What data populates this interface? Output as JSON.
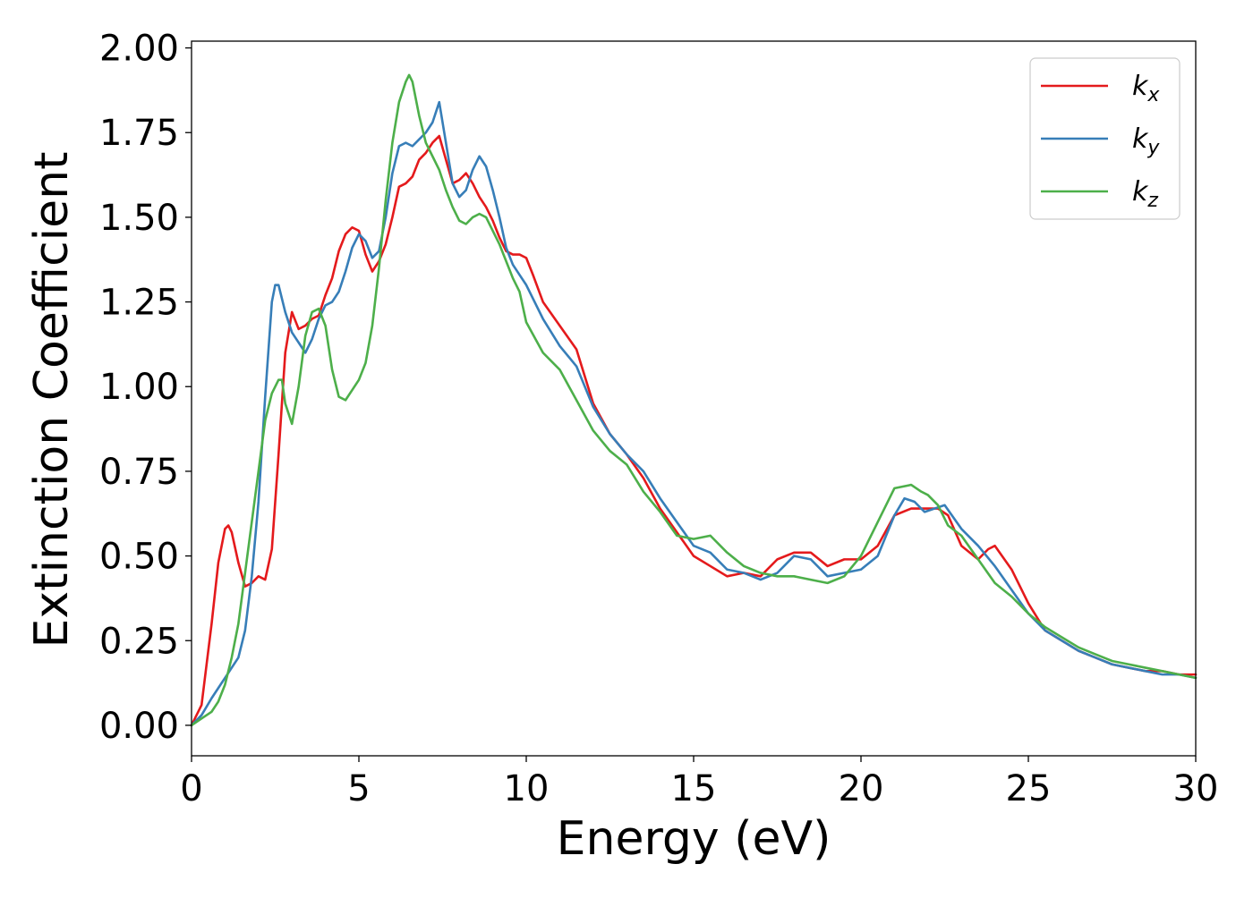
{
  "chart_data": {
    "type": "line",
    "xlabel": "Energy (eV)",
    "ylabel": "Extinction Coefficient",
    "xlim": [
      0,
      30
    ],
    "ylim": [
      -0.09,
      2.02
    ],
    "xticks": [
      0,
      5,
      10,
      15,
      20,
      25,
      30
    ],
    "xtick_labels": [
      "0",
      "5",
      "10",
      "15",
      "20",
      "25",
      "30"
    ],
    "yticks": [
      0.0,
      0.25,
      0.5,
      0.75,
      1.0,
      1.25,
      1.5,
      1.75,
      2.0
    ],
    "ytick_labels": [
      "0.00",
      "0.25",
      "0.50",
      "0.75",
      "1.00",
      "1.25",
      "1.50",
      "1.75",
      "2.00"
    ],
    "grid": false,
    "legend_position": "top-right",
    "series": [
      {
        "name": "kx",
        "name_base": "k",
        "name_sub": "x",
        "color": "#e41a1c",
        "x": [
          0,
          0.3,
          0.6,
          0.8,
          1.0,
          1.1,
          1.2,
          1.4,
          1.6,
          1.8,
          2.0,
          2.2,
          2.4,
          2.6,
          2.8,
          3.0,
          3.2,
          3.4,
          3.6,
          3.8,
          4.0,
          4.2,
          4.4,
          4.6,
          4.8,
          5.0,
          5.2,
          5.4,
          5.6,
          5.8,
          6.0,
          6.2,
          6.4,
          6.6,
          6.8,
          7.0,
          7.2,
          7.4,
          7.6,
          7.8,
          8.0,
          8.2,
          8.4,
          8.6,
          8.8,
          9.0,
          9.2,
          9.4,
          9.6,
          9.8,
          10.0,
          10.2,
          10.5,
          11.0,
          11.5,
          12.0,
          12.5,
          13.0,
          13.5,
          14.0,
          14.5,
          15.0,
          15.5,
          16.0,
          16.5,
          17.0,
          17.5,
          18.0,
          18.5,
          19.0,
          19.5,
          20.0,
          20.5,
          21.0,
          21.5,
          22.0,
          22.3,
          22.6,
          23.0,
          23.5,
          23.8,
          24.0,
          24.5,
          25.0,
          25.5,
          26.0,
          26.5,
          27.0,
          27.5,
          28.0,
          28.5,
          29.0,
          29.5,
          30.0
        ],
        "values": [
          0.0,
          0.06,
          0.3,
          0.48,
          0.58,
          0.59,
          0.57,
          0.48,
          0.41,
          0.42,
          0.44,
          0.43,
          0.52,
          0.8,
          1.1,
          1.22,
          1.17,
          1.18,
          1.2,
          1.21,
          1.27,
          1.32,
          1.4,
          1.45,
          1.47,
          1.46,
          1.39,
          1.34,
          1.37,
          1.42,
          1.5,
          1.59,
          1.6,
          1.62,
          1.67,
          1.69,
          1.72,
          1.74,
          1.67,
          1.6,
          1.61,
          1.63,
          1.6,
          1.56,
          1.53,
          1.49,
          1.44,
          1.4,
          1.39,
          1.39,
          1.38,
          1.33,
          1.25,
          1.18,
          1.11,
          0.95,
          0.86,
          0.8,
          0.73,
          0.64,
          0.57,
          0.5,
          0.47,
          0.44,
          0.45,
          0.44,
          0.49,
          0.51,
          0.51,
          0.47,
          0.49,
          0.49,
          0.53,
          0.62,
          0.64,
          0.64,
          0.64,
          0.62,
          0.53,
          0.49,
          0.52,
          0.53,
          0.46,
          0.36,
          0.28,
          0.25,
          0.22,
          0.2,
          0.18,
          0.17,
          0.16,
          0.16,
          0.15,
          0.15
        ]
      },
      {
        "name": "ky",
        "name_base": "k",
        "name_sub": "y",
        "color": "#377eb8",
        "x": [
          0,
          0.3,
          0.6,
          0.8,
          1.0,
          1.2,
          1.4,
          1.6,
          1.8,
          2.0,
          2.2,
          2.4,
          2.5,
          2.6,
          2.8,
          3.0,
          3.2,
          3.4,
          3.6,
          3.8,
          4.0,
          4.2,
          4.4,
          4.6,
          4.8,
          5.0,
          5.2,
          5.4,
          5.6,
          5.8,
          6.0,
          6.2,
          6.4,
          6.6,
          6.8,
          7.0,
          7.2,
          7.4,
          7.6,
          7.8,
          8.0,
          8.2,
          8.4,
          8.6,
          8.8,
          9.0,
          9.2,
          9.4,
          9.6,
          9.8,
          10.0,
          10.5,
          11.0,
          11.5,
          12.0,
          12.5,
          13.0,
          13.5,
          14.0,
          14.5,
          15.0,
          15.5,
          16.0,
          16.5,
          17.0,
          17.5,
          18.0,
          18.5,
          19.0,
          19.5,
          20.0,
          20.5,
          21.0,
          21.3,
          21.6,
          21.9,
          22.2,
          22.5,
          23.0,
          23.5,
          24.0,
          24.5,
          25.0,
          25.5,
          26.0,
          26.5,
          27.0,
          27.5,
          28.0,
          28.5,
          29.0,
          29.5,
          30.0
        ],
        "values": [
          0.0,
          0.03,
          0.08,
          0.11,
          0.14,
          0.17,
          0.2,
          0.28,
          0.44,
          0.66,
          0.97,
          1.25,
          1.3,
          1.3,
          1.22,
          1.16,
          1.13,
          1.1,
          1.14,
          1.2,
          1.24,
          1.25,
          1.28,
          1.34,
          1.41,
          1.45,
          1.43,
          1.38,
          1.4,
          1.5,
          1.63,
          1.71,
          1.72,
          1.71,
          1.73,
          1.75,
          1.78,
          1.84,
          1.72,
          1.6,
          1.56,
          1.58,
          1.64,
          1.68,
          1.65,
          1.58,
          1.5,
          1.41,
          1.36,
          1.33,
          1.3,
          1.2,
          1.12,
          1.06,
          0.94,
          0.86,
          0.8,
          0.75,
          0.67,
          0.6,
          0.53,
          0.51,
          0.46,
          0.45,
          0.43,
          0.45,
          0.5,
          0.49,
          0.44,
          0.45,
          0.46,
          0.5,
          0.62,
          0.67,
          0.66,
          0.63,
          0.64,
          0.65,
          0.58,
          0.53,
          0.47,
          0.4,
          0.33,
          0.28,
          0.25,
          0.22,
          0.2,
          0.18,
          0.17,
          0.16,
          0.15,
          0.15,
          0.14
        ]
      },
      {
        "name": "kz",
        "name_base": "k",
        "name_sub": "z",
        "color": "#4daf4a",
        "x": [
          0,
          0.3,
          0.6,
          0.8,
          1.0,
          1.2,
          1.4,
          1.6,
          1.8,
          2.0,
          2.2,
          2.4,
          2.6,
          2.7,
          2.8,
          3.0,
          3.2,
          3.4,
          3.6,
          3.8,
          4.0,
          4.2,
          4.4,
          4.6,
          4.8,
          5.0,
          5.2,
          5.4,
          5.6,
          5.8,
          6.0,
          6.2,
          6.4,
          6.5,
          6.6,
          6.8,
          7.0,
          7.2,
          7.4,
          7.6,
          7.8,
          8.0,
          8.2,
          8.4,
          8.6,
          8.8,
          9.0,
          9.2,
          9.4,
          9.6,
          9.8,
          10.0,
          10.5,
          11.0,
          11.5,
          12.0,
          12.5,
          13.0,
          13.5,
          14.0,
          14.5,
          15.0,
          15.5,
          16.0,
          16.5,
          17.0,
          17.5,
          18.0,
          18.5,
          19.0,
          19.5,
          20.0,
          20.5,
          21.0,
          21.5,
          21.8,
          22.0,
          22.3,
          22.6,
          23.0,
          23.5,
          24.0,
          24.5,
          25.0,
          25.5,
          26.0,
          26.5,
          27.0,
          27.5,
          28.0,
          28.5,
          29.0,
          29.5,
          30.0
        ],
        "values": [
          0.0,
          0.02,
          0.04,
          0.07,
          0.12,
          0.2,
          0.3,
          0.45,
          0.6,
          0.75,
          0.9,
          0.98,
          1.02,
          1.02,
          0.95,
          0.89,
          1.0,
          1.15,
          1.22,
          1.23,
          1.18,
          1.05,
          0.97,
          0.96,
          0.99,
          1.02,
          1.07,
          1.18,
          1.35,
          1.55,
          1.72,
          1.84,
          1.9,
          1.92,
          1.9,
          1.8,
          1.72,
          1.68,
          1.64,
          1.58,
          1.53,
          1.49,
          1.48,
          1.5,
          1.51,
          1.5,
          1.46,
          1.42,
          1.37,
          1.32,
          1.28,
          1.19,
          1.1,
          1.05,
          0.96,
          0.87,
          0.81,
          0.77,
          0.69,
          0.63,
          0.56,
          0.55,
          0.56,
          0.51,
          0.47,
          0.45,
          0.44,
          0.44,
          0.43,
          0.42,
          0.44,
          0.5,
          0.6,
          0.7,
          0.71,
          0.69,
          0.68,
          0.65,
          0.59,
          0.56,
          0.49,
          0.42,
          0.38,
          0.33,
          0.29,
          0.26,
          0.23,
          0.21,
          0.19,
          0.18,
          0.17,
          0.16,
          0.15,
          0.14
        ]
      }
    ]
  }
}
